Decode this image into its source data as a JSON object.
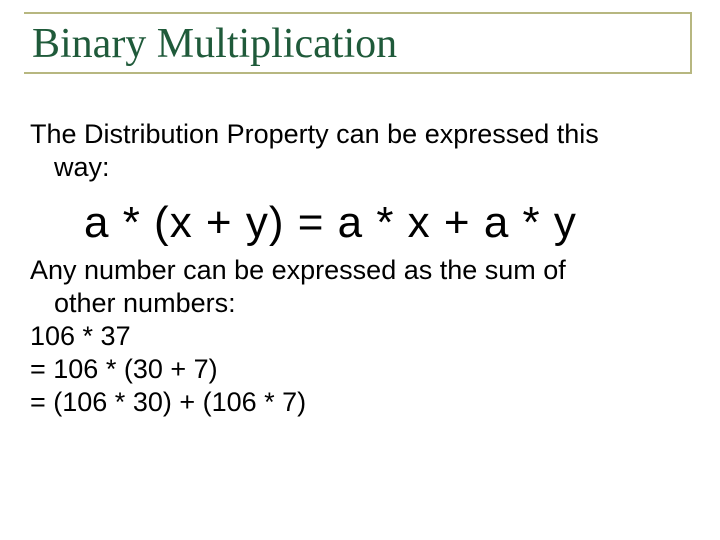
{
  "slide": {
    "title": "Binary Multiplication",
    "title_color": "#1f5a3a",
    "border_color": "#b7b780",
    "background_color": "#ffffff",
    "text_color": "#000000",
    "body_font": "Arial",
    "title_font": "Times New Roman",
    "title_fontsize": 42,
    "body_fontsize": 27,
    "formula_fontsize": 44,
    "para1_line1": "The Distribution Property can be expressed this",
    "para1_line2": "way:",
    "formula": "a * (x + y) =  a * x + a * y",
    "para2_line1": "Any number can be expressed as the sum of",
    "para2_line2": "other numbers:",
    "para2_line3": "106 * 37",
    "para2_line4": "= 106 * (30 + 7)",
    "para2_line5": "= (106 * 30) + (106 * 7)"
  }
}
